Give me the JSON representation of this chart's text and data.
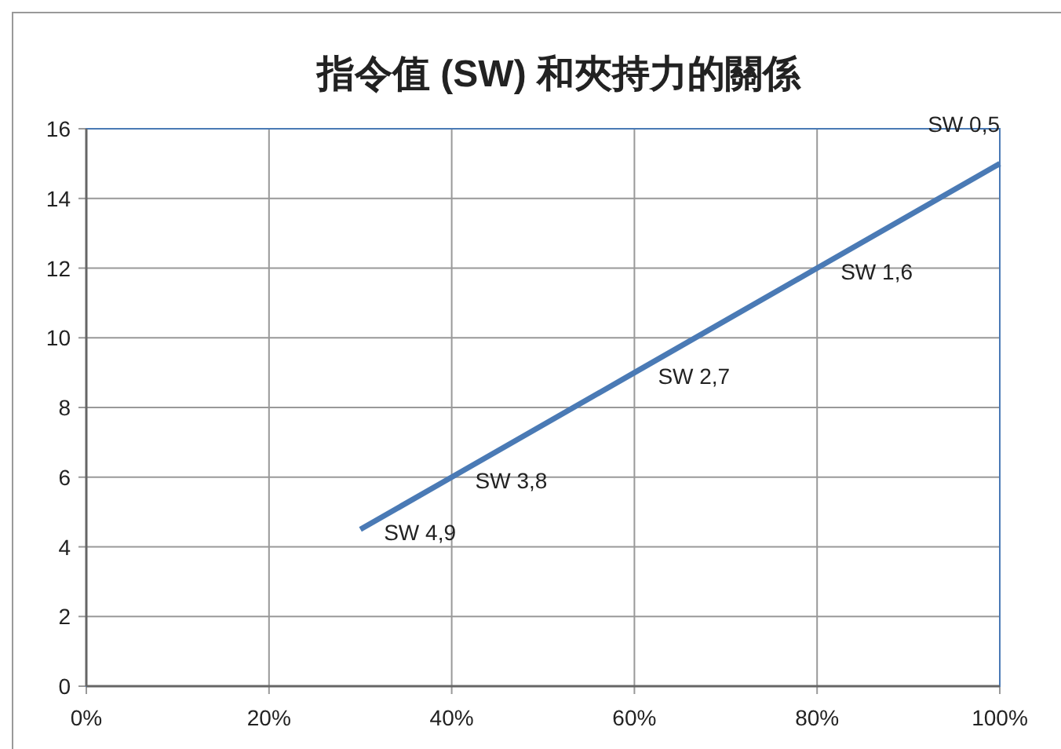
{
  "chart_data": {
    "type": "line",
    "title": "指令值 (SW) 和夾持力的關係",
    "x": [
      30,
      40,
      60,
      80,
      100
    ],
    "series": [
      {
        "color": "#4a7ab5",
        "values": [
          4.5,
          6,
          9,
          12,
          15
        ]
      }
    ],
    "xlim": [
      0,
      100
    ],
    "xticks": [
      {
        "value": 0,
        "label": "0%"
      },
      {
        "value": 20,
        "label": "20%"
      },
      {
        "value": 40,
        "label": "40%"
      },
      {
        "value": 60,
        "label": "60%"
      },
      {
        "value": 80,
        "label": "80%"
      },
      {
        "value": 100,
        "label": "100%"
      }
    ],
    "ylim": [
      0,
      16
    ],
    "yticks": [
      0,
      2,
      4,
      6,
      8,
      10,
      12,
      14,
      16
    ],
    "grid": true,
    "annotations": [
      {
        "text": "SW 4,9",
        "x": 30,
        "y": 4.5
      },
      {
        "text": "SW 3,8",
        "x": 40,
        "y": 6
      },
      {
        "text": "SW 2,7",
        "x": 60,
        "y": 9
      },
      {
        "text": "SW 1,6",
        "x": 80,
        "y": 12
      },
      {
        "text": "SW 0,5",
        "x": 100,
        "y": 15
      }
    ]
  }
}
